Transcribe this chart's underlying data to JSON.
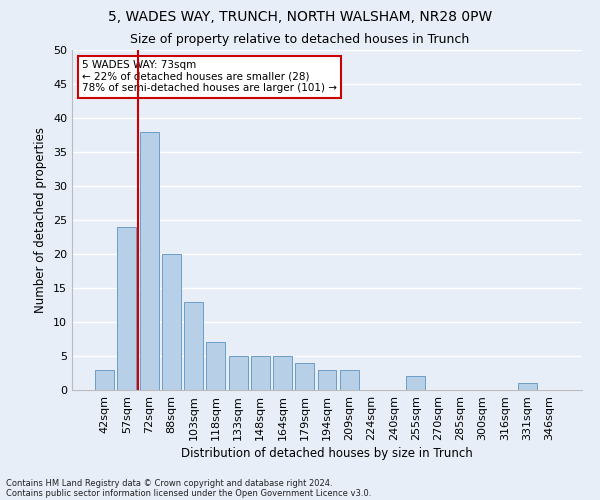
{
  "title1": "5, WADES WAY, TRUNCH, NORTH WALSHAM, NR28 0PW",
  "title2": "Size of property relative to detached houses in Trunch",
  "xlabel": "Distribution of detached houses by size in Trunch",
  "ylabel": "Number of detached properties",
  "footer1": "Contains HM Land Registry data © Crown copyright and database right 2024.",
  "footer2": "Contains public sector information licensed under the Open Government Licence v3.0.",
  "annotation_title": "5 WADES WAY: 73sqm",
  "annotation_line1": "← 22% of detached houses are smaller (28)",
  "annotation_line2": "78% of semi-detached houses are larger (101) →",
  "bar_labels": [
    "42sqm",
    "57sqm",
    "72sqm",
    "88sqm",
    "103sqm",
    "118sqm",
    "133sqm",
    "148sqm",
    "164sqm",
    "179sqm",
    "194sqm",
    "209sqm",
    "224sqm",
    "240sqm",
    "255sqm",
    "270sqm",
    "285sqm",
    "300sqm",
    "316sqm",
    "331sqm",
    "346sqm"
  ],
  "bar_values": [
    3,
    24,
    38,
    20,
    13,
    7,
    5,
    5,
    5,
    4,
    3,
    3,
    0,
    0,
    2,
    0,
    0,
    0,
    0,
    1,
    0
  ],
  "bar_color": "#b8cfe8",
  "bar_edge_color": "#6b9dc8",
  "vline_color": "#cc0000",
  "annotation_box_color": "#ffffff",
  "annotation_box_edge": "#cc0000",
  "ylim": [
    0,
    50
  ],
  "yticks": [
    0,
    5,
    10,
    15,
    20,
    25,
    30,
    35,
    40,
    45,
    50
  ],
  "background_color": "#e8eef8",
  "grid_color": "#ffffff",
  "title1_fontsize": 10,
  "title2_fontsize": 9,
  "axis_label_fontsize": 8.5
}
